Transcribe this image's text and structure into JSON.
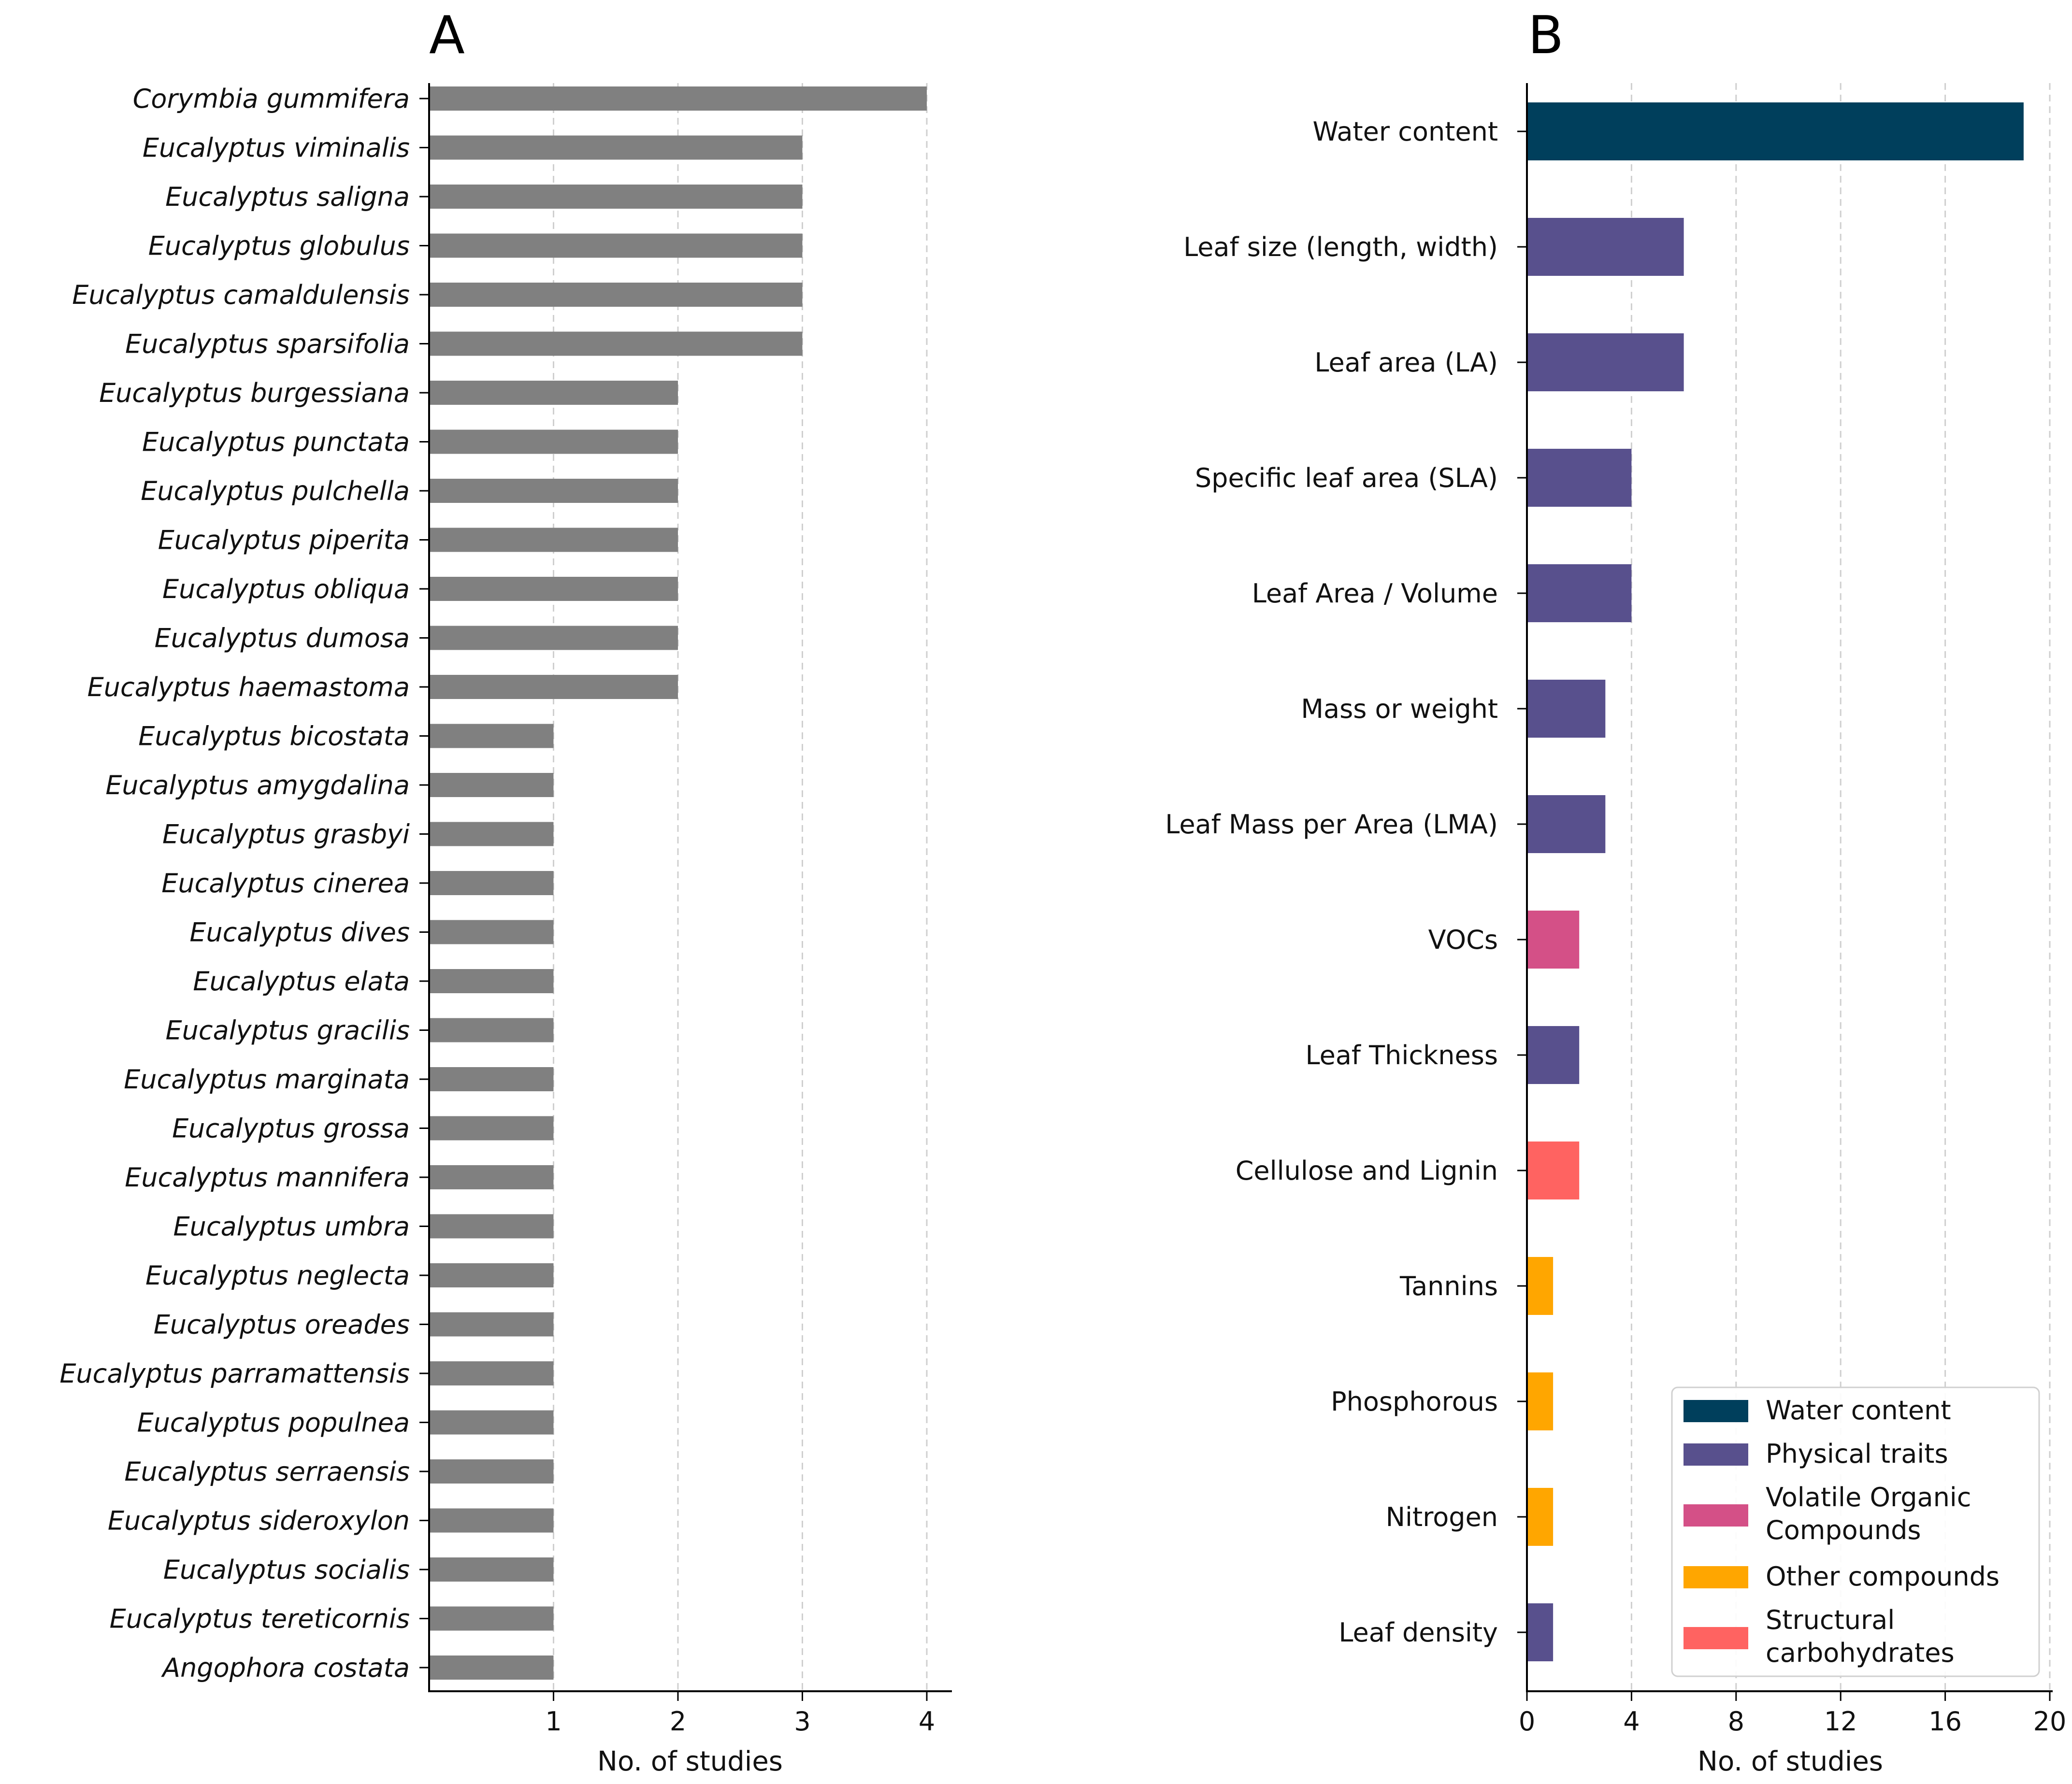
{
  "chart_data": [
    {
      "panel": "A",
      "type": "bar",
      "orientation": "horizontal",
      "xlabel": "No. of studies",
      "xticks": [
        1,
        2,
        3,
        4
      ],
      "xlim": [
        0,
        4.2
      ],
      "bar_color": "#808080",
      "grid": "vertical dashed",
      "categories": [
        "Corymbia gummifera",
        "Eucalyptus viminalis",
        "Eucalyptus saligna",
        "Eucalyptus globulus",
        "Eucalyptus camaldulensis",
        "Eucalyptus sparsifolia",
        "Eucalyptus burgessiana",
        "Eucalyptus punctata",
        "Eucalyptus pulchella",
        "Eucalyptus piperita",
        "Eucalyptus obliqua",
        "Eucalyptus dumosa",
        "Eucalyptus haemastoma",
        "Eucalyptus bicostata",
        "Eucalyptus amygdalina",
        "Eucalyptus grasbyi",
        "Eucalyptus cinerea",
        "Eucalyptus dives",
        "Eucalyptus elata",
        "Eucalyptus gracilis",
        "Eucalyptus marginata",
        "Eucalyptus grossa",
        "Eucalyptus mannifera",
        "Eucalyptus umbra",
        "Eucalyptus neglecta",
        "Eucalyptus oreades",
        "Eucalyptus parramattensis",
        "Eucalyptus populnea",
        "Eucalyptus serraensis",
        "Eucalyptus sideroxylon",
        "Eucalyptus socialis",
        "Eucalyptus tereticornis",
        "Angophora costata"
      ],
      "values": [
        4,
        3,
        3,
        3,
        3,
        3,
        2,
        2,
        2,
        2,
        2,
        2,
        2,
        1,
        1,
        1,
        1,
        1,
        1,
        1,
        1,
        1,
        1,
        1,
        1,
        1,
        1,
        1,
        1,
        1,
        1,
        1,
        1
      ]
    },
    {
      "panel": "B",
      "type": "bar",
      "orientation": "horizontal",
      "xlabel": "No. of studies",
      "xticks": [
        0,
        4,
        8,
        12,
        16,
        20
      ],
      "xlim": [
        0,
        20
      ],
      "grid": "vertical dashed",
      "categories": [
        "Water content",
        "Leaf size (length, width)",
        "Leaf area (LA)",
        "Specific leaf area (SLA)",
        "Leaf Area / Volume",
        "Mass or weight",
        "Leaf Mass per Area (LMA)",
        "VOCs",
        "Leaf Thickness",
        "Cellulose and Lignin",
        "Tannins",
        "Phosphorous",
        "Nitrogen",
        "Leaf density"
      ],
      "values": [
        19,
        6,
        6,
        4,
        4,
        3,
        3,
        2,
        2,
        2,
        1,
        1,
        1,
        1
      ],
      "groups": [
        "Water content",
        "Physical traits",
        "Physical traits",
        "Physical traits",
        "Physical traits",
        "Physical traits",
        "Physical traits",
        "Volatile Organic Compounds",
        "Physical traits",
        "Structural carbohydrates",
        "Other compounds",
        "Other compounds",
        "Other compounds",
        "Physical traits"
      ],
      "legend_position": "bottom-right",
      "legend": [
        {
          "name": "Water content",
          "label_lines": [
            "Water content"
          ],
          "color": "#003f5c"
        },
        {
          "name": "Physical traits",
          "label_lines": [
            "Physical traits"
          ],
          "color": "#58508d"
        },
        {
          "name": "Volatile Organic Compounds",
          "label_lines": [
            "Volatile Organic",
            "Compounds"
          ],
          "color": "#d45087"
        },
        {
          "name": "Other compounds",
          "label_lines": [
            "Other compounds"
          ],
          "color": "#ffa600"
        },
        {
          "name": "Structural carbohydrates",
          "label_lines": [
            "Structural",
            "carbohydrates"
          ],
          "color": "#ff6361"
        }
      ]
    }
  ]
}
